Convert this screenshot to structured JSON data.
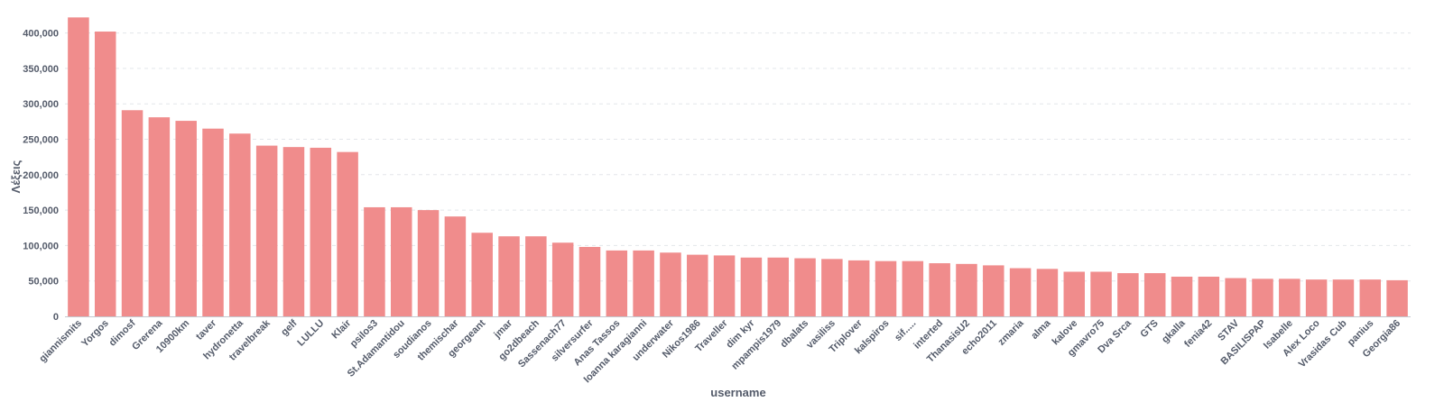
{
  "chart_data": {
    "type": "bar",
    "xlabel": "username",
    "ylabel": "Λέξεις",
    "ylim": [
      0,
      420000
    ],
    "yticks": [
      0,
      50000,
      100000,
      150000,
      200000,
      250000,
      300000,
      350000,
      400000
    ],
    "ytick_labels": [
      "0",
      "50,000",
      "100,000",
      "150,000",
      "200,000",
      "250,000",
      "300,000",
      "350,000",
      "400,000"
    ],
    "grid": true,
    "bar_color": "#f08c8c",
    "categories": [
      "giannismits",
      "Yorgos",
      "dimosf",
      "Grerena",
      "10900km",
      "taver",
      "hydronetta",
      "travelbreak",
      "gelf",
      "LULLU",
      "Klair",
      "psilos3",
      "St.Adamantidou",
      "soudianos",
      "themischar",
      "georgeant",
      "jmar",
      "go2dbeach",
      "Sassenach77",
      "silversurfer",
      "Anas Tassos",
      "Ioanna karagianni",
      "underwater",
      "Nikos1986",
      "Traveller",
      "dim kyr",
      "mpampis1979",
      "dbalats",
      "vasiliss",
      "Triplover",
      "kalspiros",
      "sif.....",
      "interted",
      "ThanasisU2",
      "echo2011",
      "zmaria",
      "alma",
      "kalove",
      "gmavro75",
      "Dva Srca",
      "GTS",
      "gkalla",
      "fenia42",
      "STAV",
      "BASILISPAP",
      "Isabelle",
      "Alex Loco",
      "Vrasidas Cub",
      "panius",
      "Georgia86"
    ],
    "values": [
      422000,
      402000,
      291000,
      281000,
      276000,
      265000,
      258000,
      241000,
      239000,
      238000,
      232000,
      154000,
      154000,
      150000,
      141000,
      118000,
      113000,
      113000,
      104000,
      98000,
      93000,
      93000,
      90000,
      87000,
      86000,
      83000,
      83000,
      82000,
      81000,
      79000,
      78000,
      78000,
      75000,
      74000,
      72000,
      68000,
      67000,
      63000,
      63000,
      61000,
      61000,
      56000,
      56000,
      54000,
      53000,
      53000,
      52000,
      52000,
      52000,
      51000
    ]
  }
}
